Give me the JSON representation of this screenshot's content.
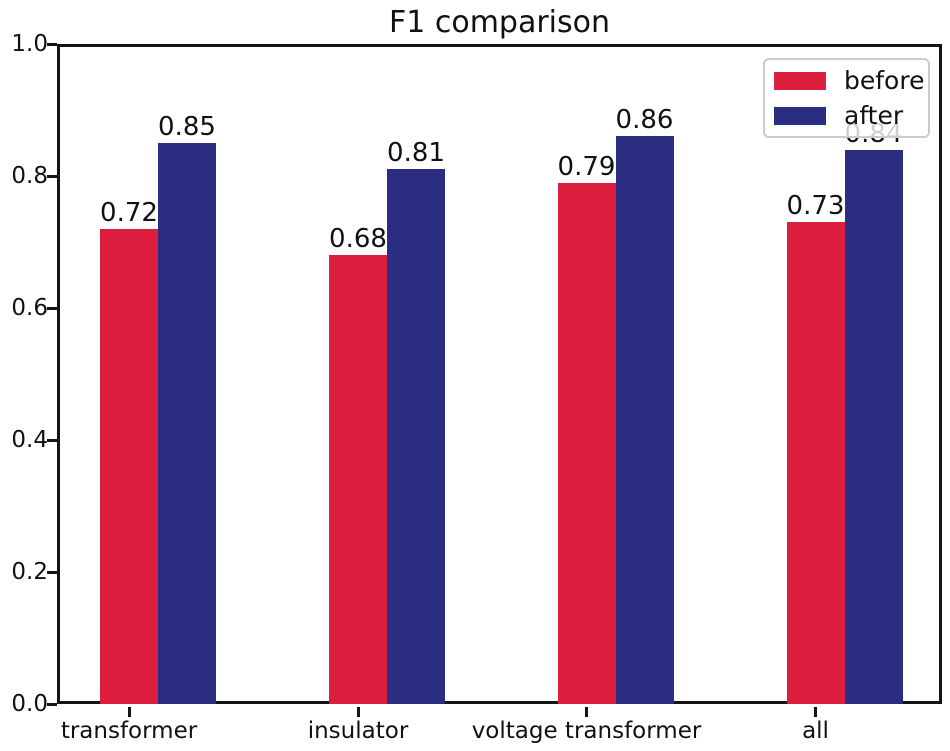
{
  "chart_data": {
    "type": "bar",
    "title": "F1 comparison",
    "categories": [
      "transformer",
      "insulator",
      "voltage transformer",
      "all"
    ],
    "series": [
      {
        "name": "before",
        "color": "#dc1f3f",
        "values": [
          0.72,
          0.68,
          0.79,
          0.73
        ],
        "labels": [
          "0.72",
          "0.68",
          "0.79",
          "0.73"
        ]
      },
      {
        "name": "after",
        "color": "#2b2e80",
        "values": [
          0.85,
          0.81,
          0.86,
          0.84
        ],
        "labels": [
          "0.85",
          "0.81",
          "0.86",
          "0.84"
        ]
      }
    ],
    "xlabel": "",
    "ylabel": "",
    "ylim": [
      0.0,
      1.0
    ],
    "yticks": [
      "0.0",
      "0.2",
      "0.4",
      "0.6",
      "0.8",
      "1.0"
    ],
    "grid": false,
    "legend": {
      "position": "upper right",
      "entries": [
        "before",
        "after"
      ]
    }
  }
}
